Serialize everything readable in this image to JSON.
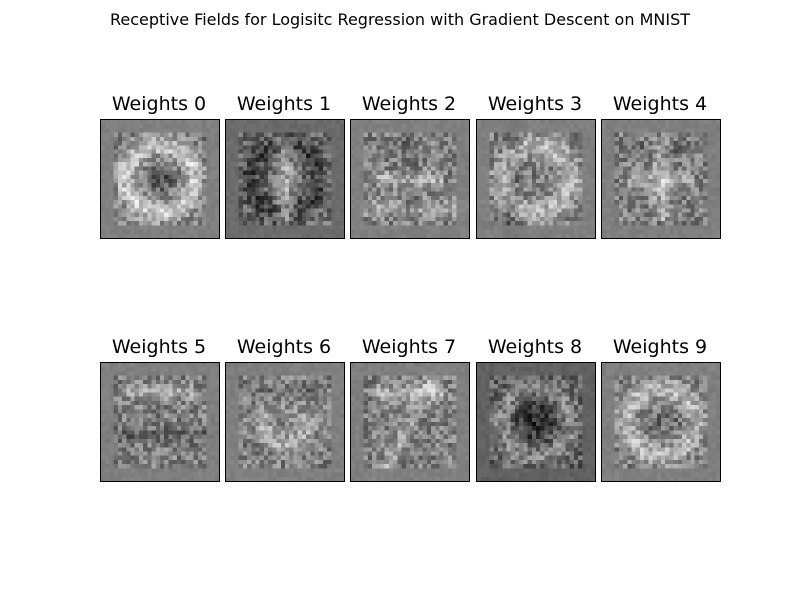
{
  "figure": {
    "title": "Receptive Fields for Logisitc Regression with Gradient Descent on MNIST"
  },
  "chart_data": {
    "type": "heatmap",
    "colormap": "grayscale",
    "grid": false,
    "axes_ticks": "off",
    "image_size": [
      28,
      28
    ],
    "panels": [
      {
        "title": "Weights 0"
      },
      {
        "title": "Weights 1"
      },
      {
        "title": "Weights 2"
      },
      {
        "title": "Weights 3"
      },
      {
        "title": "Weights 4"
      },
      {
        "title": "Weights 5"
      },
      {
        "title": "Weights 6"
      },
      {
        "title": "Weights 7"
      },
      {
        "title": "Weights 8"
      },
      {
        "title": "Weights 9"
      }
    ]
  }
}
